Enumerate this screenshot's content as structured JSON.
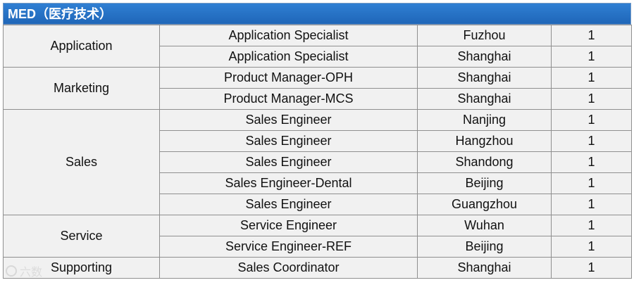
{
  "header": {
    "title": "MED（医疗技术）"
  },
  "groups": [
    {
      "dept": "Application",
      "rows": [
        {
          "position": "Application Specialist",
          "city": "Fuzhou",
          "count": "1"
        },
        {
          "position": "Application Specialist",
          "city": "Shanghai",
          "count": "1"
        }
      ]
    },
    {
      "dept": "Marketing",
      "rows": [
        {
          "position": "Product Manager-OPH",
          "city": "Shanghai",
          "count": "1"
        },
        {
          "position": "Product Manager-MCS",
          "city": "Shanghai",
          "count": "1"
        }
      ]
    },
    {
      "dept": "Sales",
      "rows": [
        {
          "position": "Sales Engineer",
          "city": "Nanjing",
          "count": "1"
        },
        {
          "position": "Sales Engineer",
          "city": "Hangzhou",
          "count": "1"
        },
        {
          "position": "Sales Engineer",
          "city": "Shandong",
          "count": "1"
        },
        {
          "position": "Sales Engineer-Dental",
          "city": "Beijing",
          "count": "1"
        },
        {
          "position": "Sales Engineer",
          "city": "Guangzhou",
          "count": "1"
        }
      ]
    },
    {
      "dept": "Service",
      "rows": [
        {
          "position": "Service Engineer",
          "city": "Wuhan",
          "count": "1"
        },
        {
          "position": "Service Engineer-REF",
          "city": "Beijing",
          "count": "1"
        }
      ]
    },
    {
      "dept": "Supporting",
      "rows": [
        {
          "position": "Sales Coordinator",
          "city": "Shanghai",
          "count": "1"
        }
      ]
    }
  ],
  "watermark": {
    "text": "六数"
  }
}
